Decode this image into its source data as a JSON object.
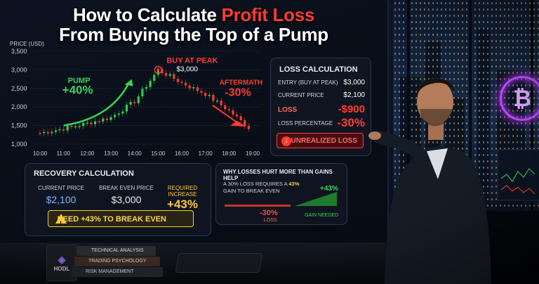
{
  "title": {
    "line1_pre": "How to Calculate ",
    "line1_red": "Profit Loss",
    "line2": "From Buying the Top of a Pump"
  },
  "chart_data": {
    "type": "line",
    "ylabel": "PRICE (USD)",
    "yticks": [
      "3,500",
      "3,000",
      "2,500",
      "2,000",
      "1,500",
      "1,000"
    ],
    "ylim": [
      1000,
      3500
    ],
    "x": [
      "10:00",
      "11:00",
      "12:00",
      "13:00",
      "14:00",
      "15:00",
      "16:00",
      "17:00",
      "18:00",
      "19:00"
    ],
    "series": [
      {
        "values": [
          1300,
          1420,
          1560,
          1720,
          2150,
          3000,
          2650,
          2350,
          1900,
          1350
        ]
      }
    ],
    "annotations": {
      "pump_label": "PUMP",
      "pump_value": "+40%",
      "peak_label": "BUY AT PEAK",
      "peak_value": "$3,000",
      "after_label": "AFTERMATH",
      "after_value": "-30%"
    },
    "colors": {
      "up": "#2ecc52",
      "down": "#ff3b30",
      "pump": "#39d353",
      "peak": "#ff3b30"
    }
  },
  "loss": {
    "header": "LOSS CALCULATION",
    "entry_label": "ENTRY (BUY AT PEAK)",
    "entry_value": "$3,000",
    "current_label": "CURRENT PRICE",
    "current_value": "$2,100",
    "loss_label": "LOSS",
    "loss_value": "-$900",
    "pct_label": "LOSS PERCENTAGE",
    "pct_value": "-30%",
    "badge": "UNREALIZED LOSS"
  },
  "recovery": {
    "header": "RECOVERY CALCULATION",
    "current_label": "CURRENT PRICE",
    "current_value": "$2,100",
    "breakeven_label": "BREAK EVEN PRICE",
    "breakeven_value": "$3,000",
    "required_label": "REQUIRED INCREASE",
    "required_value": "+43%",
    "banner": "NEED +43% TO BREAK EVEN"
  },
  "why": {
    "header": "WHY LOSSES HURT MORE THAN GAINS HELP",
    "text_pre": "A 30% LOSS REQUIRES A ",
    "text_hl": "43%",
    "text_post": " GAIN TO BREAK EVEN",
    "gain_value": "+43%",
    "loss_value": "-30%",
    "loss_caption": "LOSS",
    "gain_caption": "GAIN NEEDED"
  },
  "props": {
    "mug_text": "HODL",
    "books": [
      "TECHNICAL ANALYSIS",
      "TRADING PSYCHOLOGY",
      "RISK MANAGEMENT"
    ],
    "btc_symbol": "₿"
  }
}
